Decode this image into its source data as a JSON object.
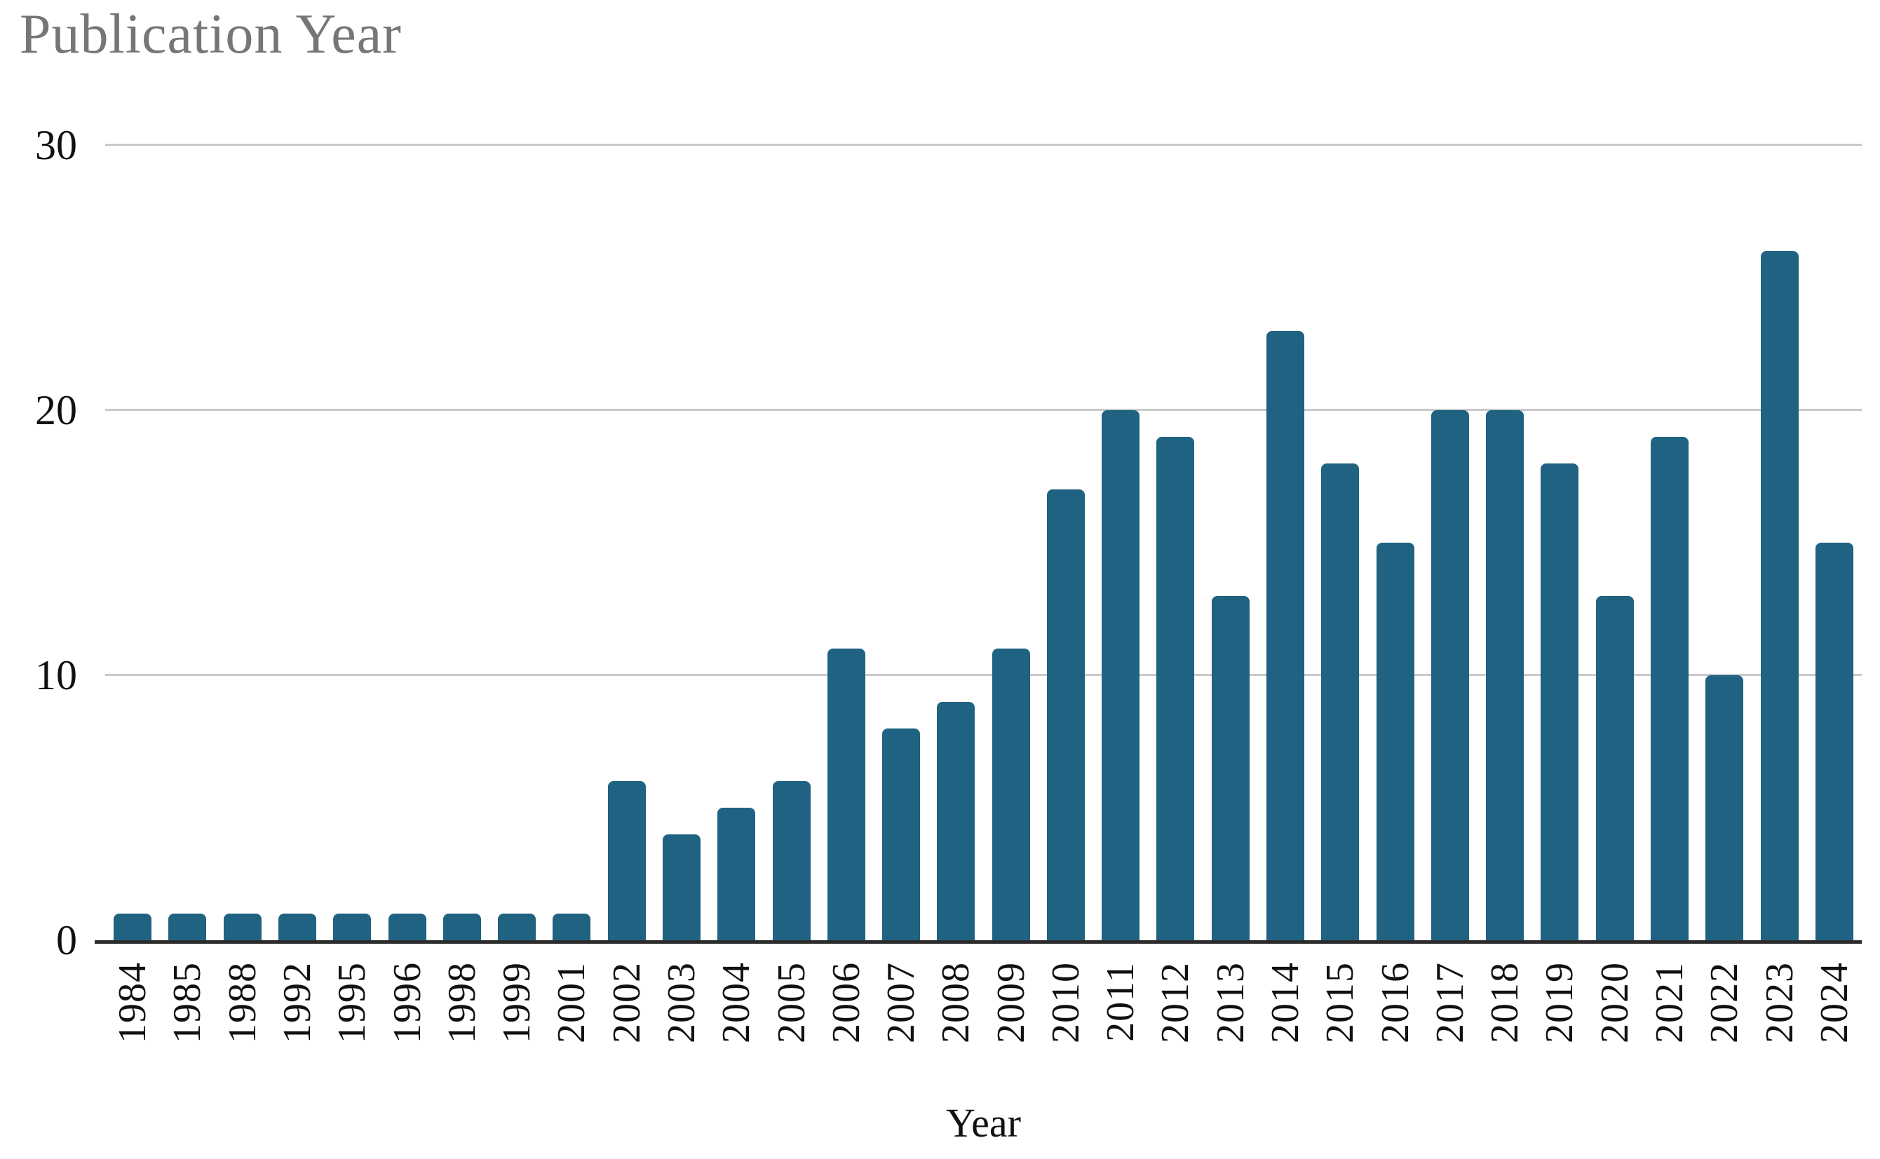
{
  "chart_data": {
    "type": "bar",
    "title": "Publication Year",
    "xlabel": "Year",
    "ylabel": "",
    "categories": [
      "1984",
      "1985",
      "1988",
      "1992",
      "1995",
      "1996",
      "1998",
      "1999",
      "2001",
      "2002",
      "2003",
      "2004",
      "2005",
      "2006",
      "2007",
      "2008",
      "2009",
      "2010",
      "2011",
      "2012",
      "2013",
      "2014",
      "2015",
      "2016",
      "2017",
      "2018",
      "2019",
      "2020",
      "2021",
      "2022",
      "2023",
      "2024"
    ],
    "values": [
      1,
      1,
      1,
      1,
      1,
      1,
      1,
      1,
      1,
      6,
      4,
      5,
      6,
      11,
      8,
      9,
      11,
      17,
      20,
      19,
      13,
      23,
      18,
      15,
      20,
      20,
      18,
      13,
      19,
      10,
      26,
      15
    ],
    "ylim": [
      0,
      30
    ],
    "yticks": [
      0,
      10,
      20,
      30
    ],
    "grid": "horizontal-gridlines-at-10-20-30",
    "legend": "none",
    "colors": {
      "bar": "#1f6282",
      "title": "#767676",
      "axis_line": "#2b2b2b",
      "gridline": "#c9c9c9",
      "tick_label": "#111111",
      "background": "#ffffff"
    }
  }
}
